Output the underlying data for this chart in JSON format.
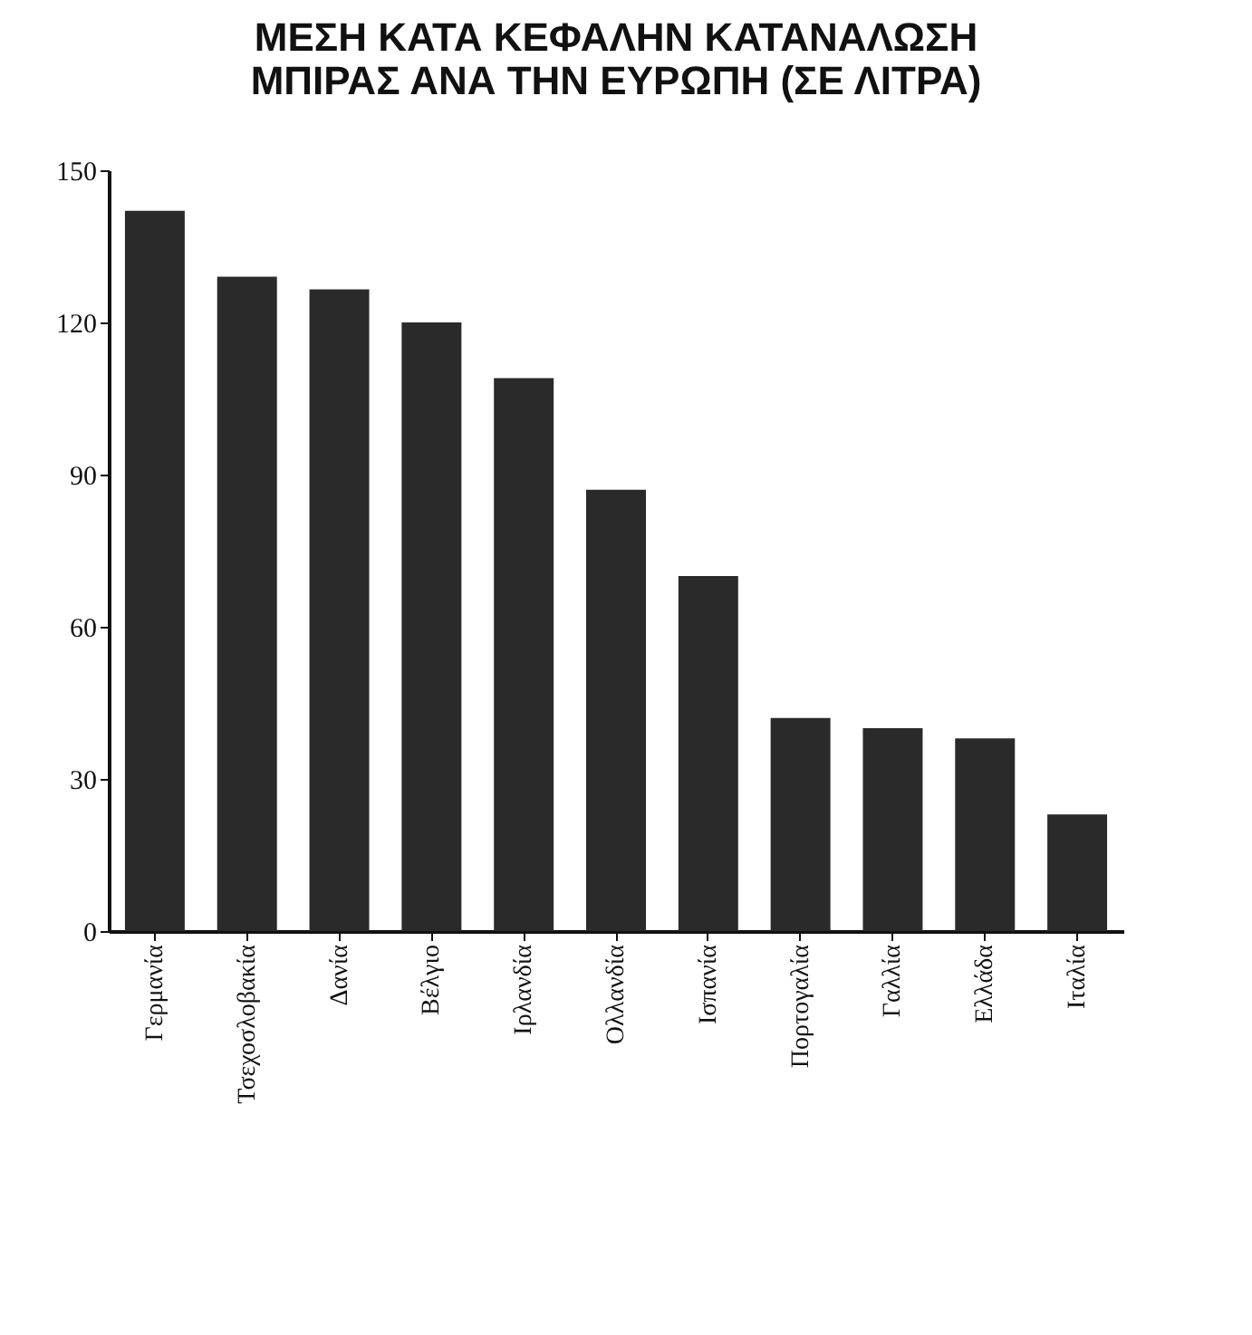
{
  "chart_data": {
    "type": "bar",
    "title": "ΜΕΣΗ ΚΑΤΑ ΚΕΦΑΛΗΝ ΚΑΤΑΝΑΛΩΣΗ\nΜΠΙΡΑΣ ΑΝΑ ΤΗΝ ΕΥΡΩΠΗ (ΣΕ ΛΙΤΡΑ)",
    "categories": [
      "Γερμανία",
      "Τσεχοσλοβακία",
      "Δανία",
      "Βέλγιο",
      "Ιρλανδία",
      "Ολλανδία",
      "Ισπανία",
      "Πορτογαλία",
      "Γαλλία",
      "Ελλάδα",
      "Ιταλία"
    ],
    "values": [
      142,
      129,
      126.5,
      120,
      109,
      87,
      70,
      42,
      40,
      38,
      23
    ],
    "color": "#2a2a2a",
    "ylim": [
      0,
      150
    ],
    "yticks": [
      0,
      30,
      60,
      90,
      120,
      150
    ],
    "grid": false
  }
}
